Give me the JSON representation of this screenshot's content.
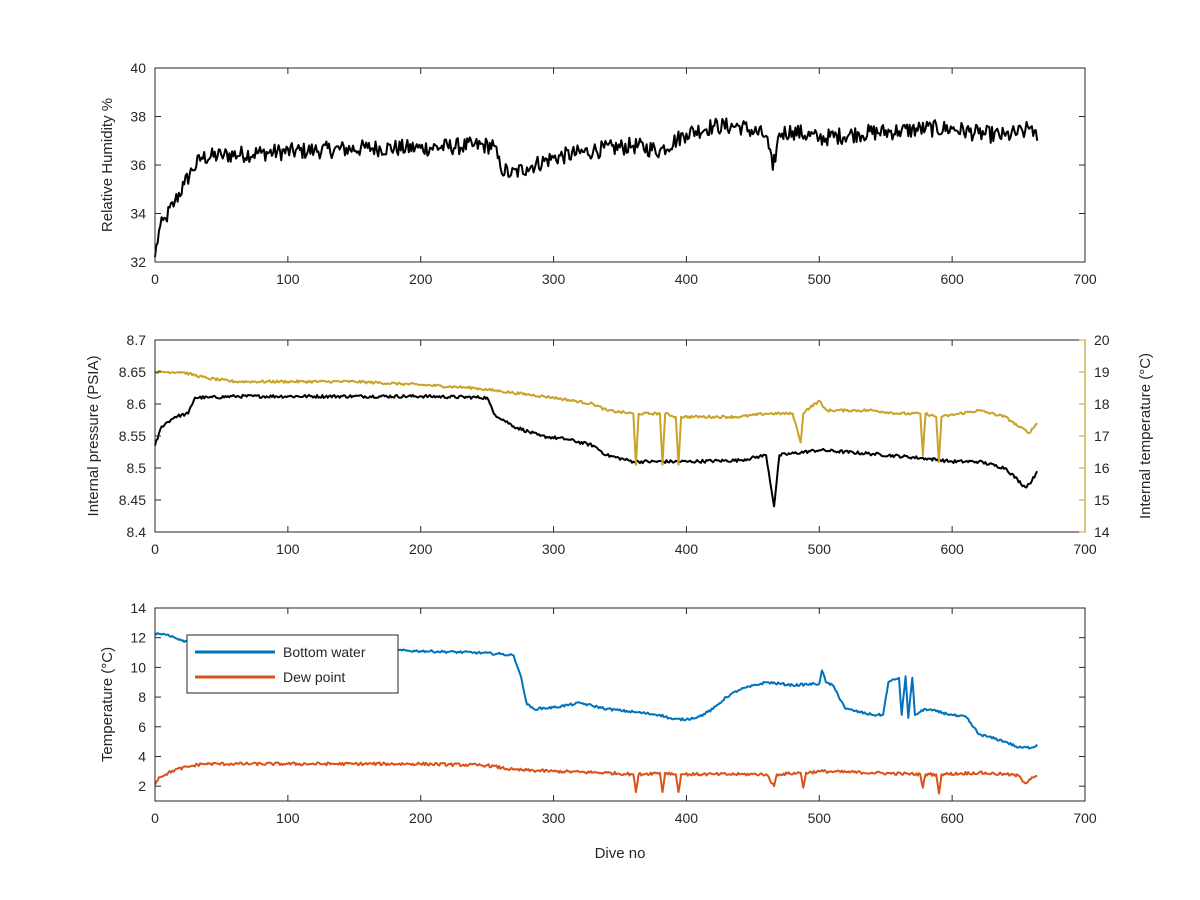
{
  "chart_data": [
    {
      "type": "line",
      "panel": "humidity",
      "ylabel": "Relative Humidity %",
      "xlim": [
        0,
        700
      ],
      "ylim": [
        32,
        40
      ],
      "xticks": [
        "0",
        "100",
        "200",
        "300",
        "400",
        "500",
        "600",
        "700"
      ],
      "yticks": [
        "32",
        "34",
        "36",
        "38",
        "40"
      ],
      "series": [
        {
          "color": "#000000",
          "noise": 0.35,
          "x": [
            0,
            3,
            8,
            15,
            22,
            28,
            35,
            50,
            80,
            120,
            160,
            200,
            240,
            255,
            260,
            268,
            280,
            300,
            330,
            360,
            380,
            400,
            420,
            440,
            460,
            465,
            470,
            480,
            500,
            530,
            560,
            580,
            600,
            620,
            640,
            655,
            660,
            664
          ],
          "y": [
            32.2,
            33.3,
            33.8,
            34.5,
            35.2,
            35.8,
            36.3,
            36.4,
            36.5,
            36.6,
            36.7,
            36.7,
            36.8,
            36.8,
            35.9,
            35.6,
            35.9,
            36.3,
            36.6,
            36.8,
            36.6,
            37.3,
            37.6,
            37.6,
            37.2,
            35.8,
            37.3,
            37.4,
            37.1,
            37.3,
            37.4,
            37.5,
            37.5,
            37.3,
            37.2,
            37.4,
            37.6,
            37.0
          ]
        }
      ]
    },
    {
      "type": "line",
      "panel": "pressure",
      "ylabel": "Internal pressure (PSIA)",
      "y2label": "Internal temperature (°C)",
      "xlim": [
        0,
        700
      ],
      "ylim": [
        8.4,
        8.7
      ],
      "y2lim": [
        14,
        20
      ],
      "xticks": [
        "0",
        "100",
        "200",
        "300",
        "400",
        "500",
        "600",
        "700"
      ],
      "yticks": [
        "8.4",
        "8.45",
        "8.5",
        "8.55",
        "8.6",
        "8.65",
        "8.7"
      ],
      "y2ticks": [
        "14",
        "15",
        "16",
        "17",
        "18",
        "19",
        "20"
      ],
      "series": [
        {
          "color": "#000000",
          "axis": "left",
          "noise": 0.0025,
          "x": [
            0,
            5,
            15,
            25,
            30,
            40,
            60,
            100,
            150,
            200,
            250,
            255,
            270,
            290,
            310,
            330,
            340,
            360,
            400,
            440,
            460,
            466,
            470,
            500,
            540,
            580,
            600,
            620,
            640,
            655,
            660,
            664
          ],
          "y": [
            8.535,
            8.565,
            8.58,
            8.585,
            8.61,
            8.61,
            8.612,
            8.612,
            8.612,
            8.612,
            8.61,
            8.585,
            8.565,
            8.55,
            8.545,
            8.535,
            8.52,
            8.51,
            8.51,
            8.512,
            8.52,
            8.44,
            8.52,
            8.528,
            8.522,
            8.515,
            8.51,
            8.51,
            8.5,
            8.47,
            8.48,
            8.495
          ]
        },
        {
          "color": "#C9A227",
          "axis": "right",
          "noise": 0.04,
          "x": [
            0,
            20,
            40,
            60,
            100,
            150,
            200,
            240,
            260,
            280,
            300,
            330,
            340,
            360,
            362,
            364,
            380,
            382,
            384,
            392,
            394,
            396,
            420,
            440,
            460,
            480,
            486,
            488,
            490,
            500,
            503,
            506,
            520,
            540,
            560,
            576,
            578,
            580,
            588,
            590,
            592,
            620,
            640,
            650,
            658,
            664
          ],
          "y": [
            19,
            19,
            18.8,
            18.7,
            18.7,
            18.7,
            18.6,
            18.5,
            18.4,
            18.3,
            18.2,
            18,
            17.8,
            17.7,
            16.1,
            17.7,
            17.7,
            16.1,
            17.7,
            17.6,
            16.1,
            17.6,
            17.6,
            17.6,
            17.7,
            17.7,
            16.8,
            17.7,
            17.8,
            18.1,
            17.9,
            17.8,
            17.8,
            17.8,
            17.7,
            17.7,
            16.4,
            17.7,
            17.6,
            16.2,
            17.6,
            17.8,
            17.6,
            17.3,
            17.1,
            17.4
          ]
        }
      ]
    },
    {
      "type": "line",
      "panel": "temperature",
      "ylabel": "Temperature (°C)",
      "xlabel": "Dive no",
      "xlim": [
        0,
        700
      ],
      "ylim": [
        1,
        14
      ],
      "xticks": [
        "0",
        "100",
        "200",
        "300",
        "400",
        "500",
        "600",
        "700"
      ],
      "yticks": [
        "2",
        "4",
        "6",
        "8",
        "10",
        "12",
        "14"
      ],
      "legend": "top-left",
      "series": [
        {
          "name": "Bottom water",
          "color": "#0072BD",
          "noise": 0.08,
          "x": [
            0,
            10,
            20,
            40,
            80,
            120,
            160,
            200,
            240,
            260,
            270,
            275,
            280,
            285,
            300,
            320,
            340,
            360,
            380,
            390,
            400,
            410,
            420,
            430,
            440,
            460,
            480,
            500,
            502,
            505,
            510,
            520,
            540,
            548,
            552,
            560,
            562,
            565,
            567,
            570,
            572,
            580,
            600,
            605,
            610,
            620,
            640,
            650,
            660,
            664
          ],
          "y": [
            12.3,
            12.2,
            11.8,
            11.6,
            11.4,
            11.3,
            11.2,
            11.1,
            11,
            10.9,
            10.8,
            9.5,
            7.5,
            7.2,
            7.3,
            7.6,
            7.2,
            7,
            6.8,
            6.5,
            6.5,
            6.7,
            7.2,
            8,
            8.5,
            9,
            8.8,
            8.9,
            9.8,
            9,
            8.8,
            7.2,
            6.8,
            6.8,
            9,
            9.3,
            6.8,
            9.4,
            6.6,
            9.3,
            6.8,
            7.2,
            6.8,
            6.7,
            6.7,
            5.5,
            5,
            4.6,
            4.6,
            4.8
          ]
        },
        {
          "name": "Dew point",
          "color": "#D95319",
          "noise": 0.1,
          "x": [
            0,
            3,
            8,
            15,
            25,
            35,
            60,
            100,
            150,
            200,
            250,
            270,
            300,
            340,
            360,
            362,
            364,
            380,
            382,
            384,
            392,
            394,
            396,
            420,
            440,
            460,
            466,
            468,
            470,
            486,
            488,
            490,
            500,
            540,
            576,
            578,
            580,
            588,
            590,
            592,
            620,
            640,
            650,
            655,
            660,
            664
          ],
          "y": [
            2.1,
            2.6,
            2.8,
            3.1,
            3.3,
            3.5,
            3.5,
            3.5,
            3.5,
            3.5,
            3.4,
            3.1,
            3,
            2.9,
            2.8,
            1.6,
            2.8,
            2.9,
            1.6,
            2.9,
            2.8,
            1.6,
            2.8,
            2.8,
            2.8,
            2.8,
            2,
            2.8,
            2.8,
            2.9,
            1.9,
            2.9,
            3,
            2.9,
            2.8,
            1.9,
            2.8,
            2.8,
            1.5,
            2.8,
            2.9,
            2.8,
            2.7,
            2.2,
            2.6,
            2.7
          ]
        }
      ]
    }
  ]
}
